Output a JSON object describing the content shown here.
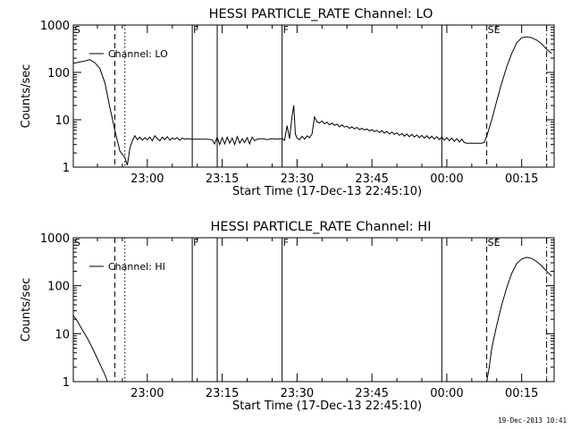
{
  "footer": {
    "timestamp": "19-Dec-2013 10:41"
  },
  "markers": {
    "dashed_time": "22:53:30",
    "dotted_time": "22:55:30",
    "solid_times": [
      "23:09:00",
      "23:14:00",
      "23:27:00",
      "23:59:00"
    ],
    "dashdot_time": "00:20:00",
    "region_labels": [
      {
        "text": "F",
        "time": "23:09:00"
      },
      {
        "text": "F",
        "time": "23:27:00"
      },
      {
        "text": "SE",
        "time": "00:08:00"
      }
    ],
    "corner_label": "S"
  },
  "chart_data": [
    {
      "type": "line",
      "title": "HESSI PARTICLE_RATE Channel: LO",
      "xlabel": "Start Time (17-Dec-13 22:45:10)",
      "ylabel": "Counts/sec",
      "y_scale": "log",
      "ylim": [
        1,
        1000
      ],
      "xlim": [
        "22:45:10",
        "00:21:30"
      ],
      "x_tick_labels": [
        "23:00",
        "23:15",
        "23:30",
        "23:45",
        "00:00",
        "00:15"
      ],
      "x_tick_times": [
        "23:00:00",
        "23:15:00",
        "23:30:00",
        "23:45:00",
        "00:00:00",
        "00:15:00"
      ],
      "y_tick_labels": [
        "1",
        "10",
        "100",
        "1000"
      ],
      "legend": {
        "label": "Channel: LO",
        "placement": "top-left"
      },
      "series": [
        {
          "name": "Channel: LO",
          "points": [
            [
              "22:45:10",
              155
            ],
            [
              "22:47:00",
              170
            ],
            [
              "22:48:30",
              185
            ],
            [
              "22:49:30",
              160
            ],
            [
              "22:50:30",
              120
            ],
            [
              "22:51:30",
              60
            ],
            [
              "22:52:30",
              18
            ],
            [
              "22:53:30",
              6
            ],
            [
              "22:54:30",
              2.2
            ],
            [
              "22:55:30",
              1.6
            ],
            [
              "22:56:00",
              1.1
            ],
            [
              "22:56:30",
              2.5
            ],
            [
              "22:57:00",
              3.6
            ],
            [
              "22:57:30",
              4.6
            ],
            [
              "22:58:00",
              3.8
            ],
            [
              "22:58:30",
              4.3
            ],
            [
              "22:59:00",
              3.7
            ],
            [
              "22:59:30",
              4.2
            ],
            [
              "23:00:00",
              3.8
            ],
            [
              "23:00:30",
              4.3
            ],
            [
              "23:01:00",
              3.6
            ],
            [
              "23:01:30",
              4.6
            ],
            [
              "23:02:00",
              4.0
            ],
            [
              "23:02:30",
              3.6
            ],
            [
              "23:03:00",
              4.3
            ],
            [
              "23:03:30",
              3.8
            ],
            [
              "23:04:00",
              4.4
            ],
            [
              "23:04:30",
              3.7
            ],
            [
              "23:05:00",
              4.1
            ],
            [
              "23:05:30",
              3.9
            ],
            [
              "23:06:00",
              4.2
            ],
            [
              "23:06:30",
              3.7
            ],
            [
              "23:07:00",
              4.1
            ],
            [
              "23:07:30",
              3.9
            ],
            [
              "23:08:00",
              4.0
            ],
            [
              "23:09:00",
              3.9
            ],
            [
              "23:10:00",
              3.9
            ],
            [
              "23:11:00",
              3.9
            ],
            [
              "23:12:00",
              3.9
            ],
            [
              "23:13:00",
              3.8
            ],
            [
              "23:13:30",
              3.1
            ],
            [
              "23:14:00",
              4.3
            ],
            [
              "23:14:30",
              3.0
            ],
            [
              "23:15:00",
              4.2
            ],
            [
              "23:15:30",
              3.1
            ],
            [
              "23:16:00",
              4.3
            ],
            [
              "23:16:30",
              3.2
            ],
            [
              "23:17:00",
              4.1
            ],
            [
              "23:17:30",
              3.0
            ],
            [
              "23:18:00",
              4.4
            ],
            [
              "23:18:30",
              3.2
            ],
            [
              "23:19:00",
              4.0
            ],
            [
              "23:19:30",
              3.3
            ],
            [
              "23:20:00",
              4.2
            ],
            [
              "23:20:30",
              3.1
            ],
            [
              "23:21:00",
              4.3
            ],
            [
              "23:21:30",
              3.6
            ],
            [
              "23:22:00",
              3.9
            ],
            [
              "23:23:00",
              4.0
            ],
            [
              "23:24:00",
              3.8
            ],
            [
              "23:25:00",
              4.0
            ],
            [
              "23:26:00",
              3.9
            ],
            [
              "23:27:00",
              4.0
            ],
            [
              "23:27:30",
              3.7
            ],
            [
              "23:28:00",
              7.5
            ],
            [
              "23:28:30",
              4.0
            ],
            [
              "23:29:00",
              12
            ],
            [
              "23:29:20",
              20
            ],
            [
              "23:29:40",
              5.0
            ],
            [
              "23:30:00",
              4.1
            ],
            [
              "23:30:30",
              3.8
            ],
            [
              "23:31:00",
              4.5
            ],
            [
              "23:31:30",
              3.9
            ],
            [
              "23:32:00",
              4.6
            ],
            [
              "23:32:30",
              4.2
            ],
            [
              "23:33:00",
              5.0
            ],
            [
              "23:33:30",
              11.5
            ],
            [
              "23:34:00",
              9.0
            ],
            [
              "23:34:30",
              8.6
            ],
            [
              "23:35:00",
              9.4
            ],
            [
              "23:35:30",
              8.2
            ],
            [
              "23:36:00",
              8.9
            ],
            [
              "23:36:30",
              7.8
            ],
            [
              "23:37:00",
              8.5
            ],
            [
              "23:37:30",
              7.6
            ],
            [
              "23:38:00",
              8.1
            ],
            [
              "23:38:30",
              7.1
            ],
            [
              "23:39:00",
              7.8
            ],
            [
              "23:39:30",
              7.0
            ],
            [
              "23:40:00",
              7.3
            ],
            [
              "23:40:30",
              6.6
            ],
            [
              "23:41:00",
              7.1
            ],
            [
              "23:41:30",
              6.4
            ],
            [
              "23:42:00",
              6.9
            ],
            [
              "23:42:30",
              6.2
            ],
            [
              "23:43:00",
              6.6
            ],
            [
              "23:43:30",
              6.1
            ],
            [
              "23:44:00",
              6.4
            ],
            [
              "23:44:30",
              5.8
            ],
            [
              "23:45:00",
              6.2
            ],
            [
              "23:45:30",
              5.6
            ],
            [
              "23:46:00",
              6.0
            ],
            [
              "23:46:30",
              5.4
            ],
            [
              "23:47:00",
              5.9
            ],
            [
              "23:47:30",
              5.2
            ],
            [
              "23:48:00",
              5.7
            ],
            [
              "23:48:30",
              5.0
            ],
            [
              "23:49:00",
              5.5
            ],
            [
              "23:49:30",
              4.9
            ],
            [
              "23:50:00",
              5.3
            ],
            [
              "23:50:30",
              4.7
            ],
            [
              "23:51:00",
              5.1
            ],
            [
              "23:51:30",
              4.5
            ],
            [
              "23:52:00",
              5.0
            ],
            [
              "23:52:30",
              4.4
            ],
            [
              "23:53:00",
              4.9
            ],
            [
              "23:53:30",
              4.3
            ],
            [
              "23:54:00",
              4.8
            ],
            [
              "23:54:30",
              4.2
            ],
            [
              "23:55:00",
              4.7
            ],
            [
              "23:55:30",
              4.1
            ],
            [
              "23:56:00",
              4.6
            ],
            [
              "23:56:30",
              4.0
            ],
            [
              "23:57:00",
              4.5
            ],
            [
              "23:57:30",
              3.9
            ],
            [
              "23:58:00",
              4.4
            ],
            [
              "23:58:30",
              3.8
            ],
            [
              "23:59:00",
              4.3
            ],
            [
              "23:59:30",
              3.7
            ],
            [
              "00:00:00",
              4.2
            ],
            [
              "00:00:30",
              3.6
            ],
            [
              "00:01:00",
              4.1
            ],
            [
              "00:01:30",
              3.5
            ],
            [
              "00:02:00",
              4.0
            ],
            [
              "00:02:30",
              3.4
            ],
            [
              "00:03:00",
              3.9
            ],
            [
              "00:03:30",
              3.3
            ],
            [
              "00:04:00",
              3.2
            ],
            [
              "00:05:00",
              3.2
            ],
            [
              "00:06:00",
              3.2
            ],
            [
              "00:07:00",
              3.2
            ],
            [
              "00:07:30",
              3.3
            ],
            [
              "00:08:00",
              4.5
            ],
            [
              "00:09:00",
              10
            ],
            [
              "00:10:00",
              25
            ],
            [
              "00:11:00",
              60
            ],
            [
              "00:12:00",
              130
            ],
            [
              "00:13:00",
              250
            ],
            [
              "00:14:00",
              420
            ],
            [
              "00:15:00",
              540
            ],
            [
              "00:16:00",
              560
            ],
            [
              "00:17:00",
              540
            ],
            [
              "00:18:00",
              480
            ],
            [
              "00:19:00",
              400
            ],
            [
              "00:20:00",
              310
            ],
            [
              "00:21:00",
              250
            ]
          ]
        }
      ]
    },
    {
      "type": "line",
      "title": "HESSI PARTICLE_RATE Channel: HI",
      "xlabel": "Start Time (17-Dec-13 22:45:10)",
      "ylabel": "Counts/sec",
      "y_scale": "log",
      "ylim": [
        1,
        1000
      ],
      "xlim": [
        "22:45:10",
        "00:21:30"
      ],
      "x_tick_labels": [
        "23:00",
        "23:15",
        "23:30",
        "23:45",
        "00:00",
        "00:15"
      ],
      "x_tick_times": [
        "23:00:00",
        "23:15:00",
        "23:30:00",
        "23:45:00",
        "00:00:00",
        "00:15:00"
      ],
      "y_tick_labels": [
        "1",
        "10",
        "100",
        "1000"
      ],
      "legend": {
        "label": "Channel: HI",
        "placement": "top-left"
      },
      "series": [
        {
          "name": "Channel: HI",
          "points": [
            [
              "22:45:10",
              24
            ],
            [
              "22:46:00",
              18
            ],
            [
              "22:47:00",
              12
            ],
            [
              "22:48:00",
              8
            ],
            [
              "22:49:00",
              5
            ],
            [
              "22:50:00",
              3
            ],
            [
              "22:51:00",
              1.8
            ],
            [
              "22:51:30",
              1.4
            ],
            [
              "22:52:00",
              1.0
            ]
          ]
        },
        {
          "name": "Channel: HI",
          "points": [
            [
              "00:08:00",
              1.0
            ],
            [
              "00:08:30",
              2.0
            ],
            [
              "00:09:00",
              5
            ],
            [
              "00:10:00",
              15
            ],
            [
              "00:11:00",
              40
            ],
            [
              "00:12:00",
              90
            ],
            [
              "00:13:00",
              180
            ],
            [
              "00:14:00",
              290
            ],
            [
              "00:15:00",
              360
            ],
            [
              "00:16:00",
              390
            ],
            [
              "00:17:00",
              370
            ],
            [
              "00:18:00",
              320
            ],
            [
              "00:19:00",
              260
            ],
            [
              "00:20:00",
              200
            ],
            [
              "00:21:00",
              160
            ]
          ]
        }
      ]
    }
  ]
}
